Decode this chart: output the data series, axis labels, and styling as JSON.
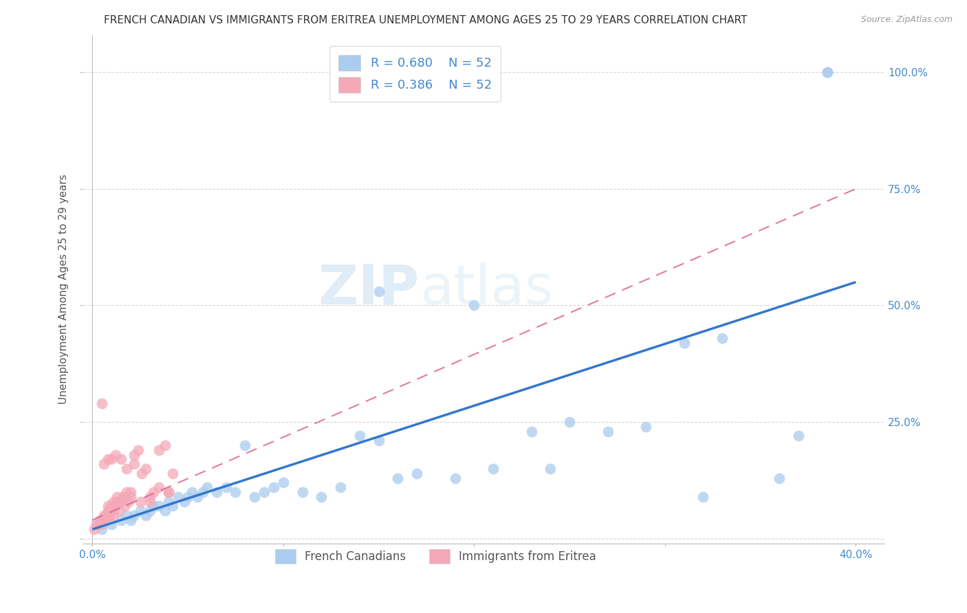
{
  "title": "FRENCH CANADIAN VS IMMIGRANTS FROM ERITREA UNEMPLOYMENT AMONG AGES 25 TO 29 YEARS CORRELATION CHART",
  "source": "Source: ZipAtlas.com",
  "ylabel": "Unemployment Among Ages 25 to 29 years",
  "x_tick_vals": [
    0.0,
    0.1,
    0.2,
    0.3,
    0.4
  ],
  "x_tick_labels": [
    "0.0%",
    "",
    "",
    "",
    "40.0%"
  ],
  "y_tick_vals": [
    0.0,
    0.25,
    0.5,
    0.75,
    1.0
  ],
  "y_tick_labels_right": [
    "",
    "25.0%",
    "50.0%",
    "75.0%",
    "100.0%"
  ],
  "xlim": [
    -0.005,
    0.415
  ],
  "ylim": [
    -0.01,
    1.08
  ],
  "legend_r_blue": "R = 0.680",
  "legend_n_blue": "N = 52",
  "legend_r_pink": "R = 0.386",
  "legend_n_pink": "N = 52",
  "legend_label_blue": "French Canadians",
  "legend_label_pink": "Immigrants from Eritrea",
  "watermark_zip": "ZIP",
  "watermark_atlas": "atlas",
  "blue_scatter_color": "#aaccee",
  "pink_scatter_color": "#f4a8b8",
  "blue_line_color": "#3377cc",
  "pink_line_color": "#dd6688",
  "title_color": "#333333",
  "axis_tick_color": "#4488cc",
  "grid_color": "#cccccc",
  "blue_scatter_x": [
    0.005,
    0.01,
    0.015,
    0.018,
    0.02,
    0.022,
    0.025,
    0.028,
    0.03,
    0.032,
    0.035,
    0.038,
    0.04,
    0.042,
    0.045,
    0.048,
    0.05,
    0.052,
    0.055,
    0.058,
    0.06,
    0.065,
    0.07,
    0.075,
    0.08,
    0.085,
    0.09,
    0.095,
    0.1,
    0.11,
    0.12,
    0.13,
    0.14,
    0.15,
    0.16,
    0.17,
    0.19,
    0.21,
    0.23,
    0.25,
    0.27,
    0.29,
    0.31,
    0.33,
    0.36,
    0.37,
    0.385,
    0.385,
    0.24,
    0.2,
    0.15,
    0.32
  ],
  "blue_scatter_y": [
    0.02,
    0.03,
    0.04,
    0.05,
    0.04,
    0.05,
    0.06,
    0.05,
    0.06,
    0.07,
    0.07,
    0.06,
    0.08,
    0.07,
    0.09,
    0.08,
    0.09,
    0.1,
    0.09,
    0.1,
    0.11,
    0.1,
    0.11,
    0.1,
    0.2,
    0.09,
    0.1,
    0.11,
    0.12,
    0.1,
    0.09,
    0.11,
    0.22,
    0.21,
    0.13,
    0.14,
    0.13,
    0.15,
    0.23,
    0.25,
    0.23,
    0.24,
    0.42,
    0.43,
    0.13,
    0.22,
    1.0,
    1.0,
    0.15,
    0.5,
    0.53,
    0.09
  ],
  "pink_scatter_x": [
    0.001,
    0.002,
    0.003,
    0.004,
    0.005,
    0.005,
    0.006,
    0.007,
    0.007,
    0.008,
    0.008,
    0.009,
    0.01,
    0.01,
    0.011,
    0.012,
    0.013,
    0.014,
    0.015,
    0.016,
    0.017,
    0.018,
    0.019,
    0.02,
    0.022,
    0.024,
    0.026,
    0.028,
    0.03,
    0.032,
    0.035,
    0.038,
    0.04,
    0.042,
    0.005,
    0.006,
    0.008,
    0.01,
    0.012,
    0.015,
    0.018,
    0.022,
    0.008,
    0.009,
    0.011,
    0.013,
    0.016,
    0.02,
    0.025,
    0.03,
    0.035,
    0.04
  ],
  "pink_scatter_y": [
    0.02,
    0.03,
    0.03,
    0.04,
    0.03,
    0.04,
    0.05,
    0.04,
    0.05,
    0.05,
    0.06,
    0.05,
    0.06,
    0.07,
    0.05,
    0.07,
    0.08,
    0.06,
    0.08,
    0.09,
    0.07,
    0.1,
    0.08,
    0.09,
    0.16,
    0.19,
    0.14,
    0.15,
    0.08,
    0.1,
    0.19,
    0.2,
    0.1,
    0.14,
    0.29,
    0.16,
    0.17,
    0.17,
    0.18,
    0.17,
    0.15,
    0.18,
    0.07,
    0.06,
    0.08,
    0.09,
    0.09,
    0.1,
    0.08,
    0.09,
    0.11,
    0.1
  ],
  "blue_line_x": [
    0.0,
    0.4
  ],
  "blue_line_y": [
    0.02,
    0.55
  ],
  "pink_line_x": [
    0.0,
    0.4
  ],
  "pink_line_y": [
    0.04,
    0.75
  ]
}
